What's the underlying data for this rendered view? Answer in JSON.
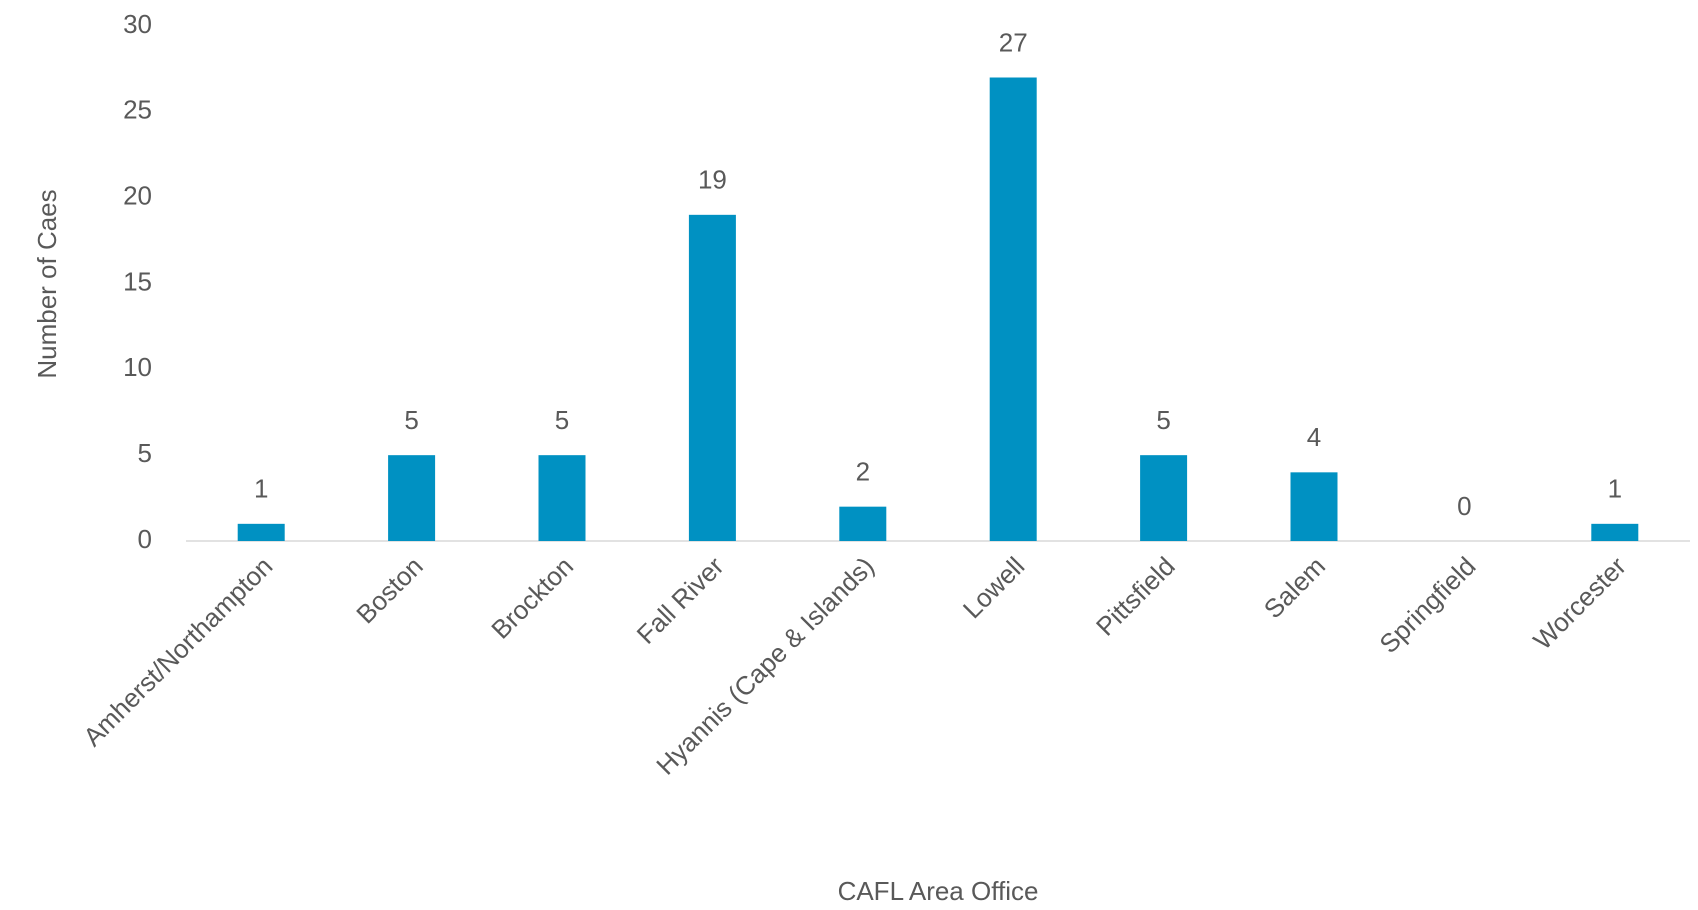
{
  "chart_data": {
    "type": "bar",
    "categories": [
      "Amherst/Northampton",
      "Boston",
      "Brockton",
      "Fall River",
      "Hyannis (Cape & Islands)",
      "Lowell",
      "Pittsfield",
      "Salem",
      "Springfield",
      "Worcester"
    ],
    "values": [
      1,
      5,
      5,
      19,
      2,
      27,
      5,
      4,
      0,
      1
    ],
    "color": "#0091c2",
    "x_label": "CAFL Area Office",
    "y_label": "Number of Caes",
    "ylim": [
      0,
      30
    ],
    "yticks": [
      0,
      5,
      10,
      15,
      20,
      25,
      30
    ],
    "grid": false
  }
}
